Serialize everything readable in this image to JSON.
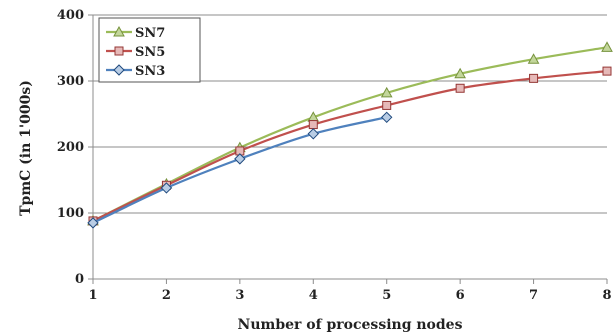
{
  "chart_data": {
    "type": "line",
    "xlabel": "Number of  processing nodes",
    "ylabel": "TpmC (in 1'000s)",
    "xlim": [
      1,
      8
    ],
    "ylim": [
      0,
      400
    ],
    "x_ticks": [
      "1",
      "2",
      "3",
      "4",
      "5",
      "6",
      "7",
      "8"
    ],
    "y_ticks": [
      "0",
      "100",
      "200",
      "300",
      "400"
    ],
    "grid": "horizontal",
    "legend_position": "top-left",
    "series": [
      {
        "name": "SN7",
        "color": "#9bbb59",
        "edge": "#76923c",
        "marker": "triangle",
        "x": [
          1,
          2,
          3,
          4,
          5,
          6,
          7,
          8
        ],
        "values": [
          88,
          144,
          199,
          245,
          282,
          311,
          333,
          351
        ]
      },
      {
        "name": "SN5",
        "color": "#c0504d",
        "edge": "#943634",
        "marker": "square",
        "x": [
          1,
          2,
          3,
          4,
          5,
          6,
          7,
          8
        ],
        "values": [
          88,
          142,
          194,
          234,
          263,
          289,
          304,
          315
        ]
      },
      {
        "name": "SN3",
        "color": "#4f81bd",
        "edge": "#1f497d",
        "marker": "diamond",
        "x": [
          1,
          2,
          3,
          4,
          5
        ],
        "values": [
          85,
          138,
          182,
          220,
          245
        ]
      }
    ]
  }
}
